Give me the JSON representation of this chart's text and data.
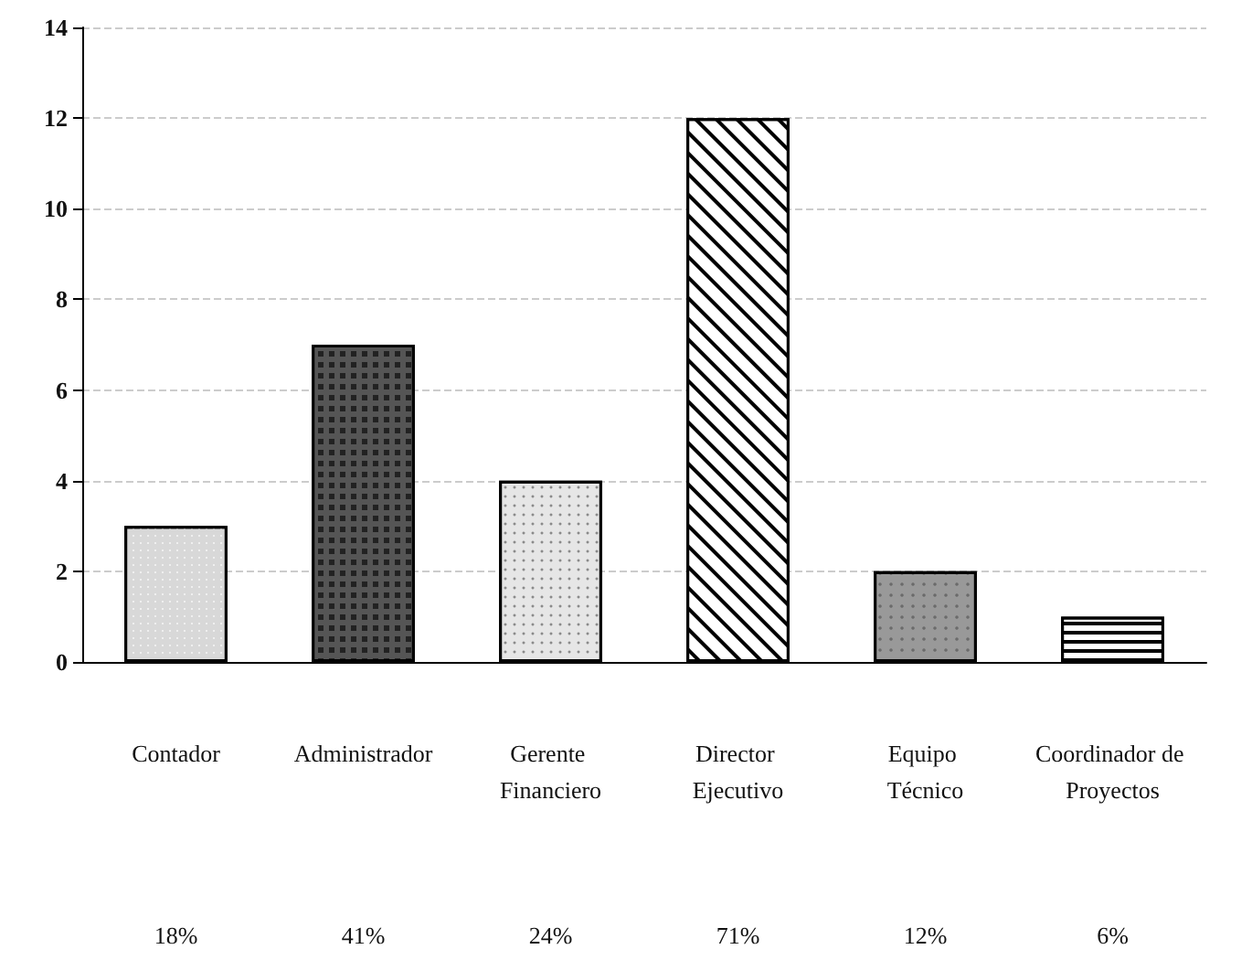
{
  "chart_data": {
    "type": "bar",
    "categories": [
      "Contador",
      "Administrador",
      "Gerente Financiero",
      "Director Ejecutivo",
      "Equipo Técnico",
      "Coordinador de Proyectos"
    ],
    "values": [
      3,
      7,
      4,
      12,
      2,
      1
    ],
    "colors": [
      "#d8d8d8",
      "#555555",
      "#e6e6e6",
      "#ffffff",
      "#999999",
      "#ffffff"
    ],
    "annotations": [
      "18%",
      "41%",
      "24%",
      "71%",
      "12%",
      "6%"
    ],
    "ylim": [
      0,
      14
    ],
    "yticks": [
      0,
      2,
      4,
      6,
      8,
      10,
      12,
      14
    ],
    "grid": "y"
  }
}
